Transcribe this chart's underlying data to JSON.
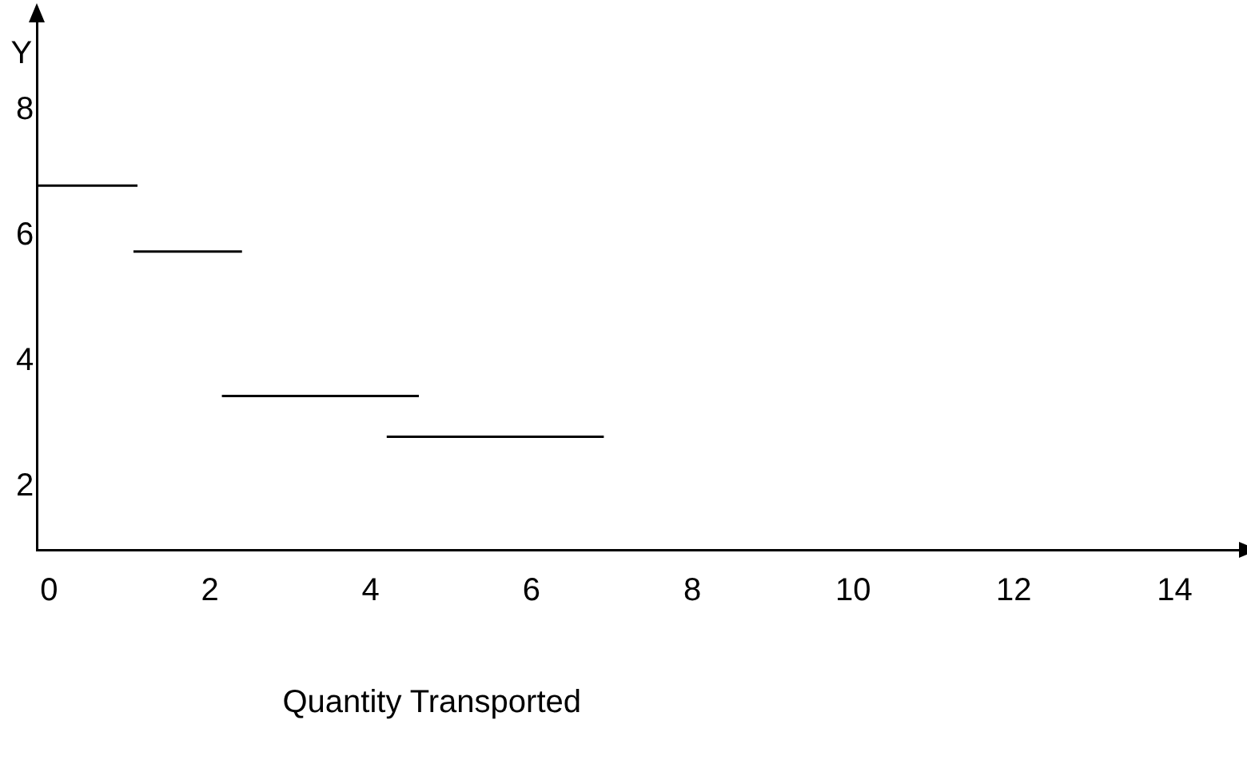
{
  "chart_data": {
    "type": "line",
    "xlabel": "Quantity Transported",
    "ylabel": "Y",
    "series": [
      {
        "color": "#000000",
        "x": [
          -0.15,
          1.1
        ],
        "values": [
          6.8,
          6.8
        ]
      },
      {
        "color": "#000000",
        "x": [
          1.05,
          2.4
        ],
        "values": [
          5.75,
          5.75
        ]
      },
      {
        "color": "#000000",
        "x": [
          2.15,
          4.6
        ],
        "values": [
          3.45,
          3.45
        ]
      },
      {
        "color": "#000000",
        "x": [
          4.2,
          6.9
        ],
        "values": [
          2.8,
          2.8
        ]
      }
    ],
    "xlim": [
      -0.15,
      14.8
    ],
    "xticks": [
      0,
      2,
      4,
      6,
      8,
      10,
      12,
      14
    ],
    "ylim": [
      1,
      9.4
    ],
    "yticks": [
      2,
      4,
      6,
      8
    ],
    "grid": false,
    "legend": false,
    "marker": "none",
    "line_style": "solid"
  }
}
